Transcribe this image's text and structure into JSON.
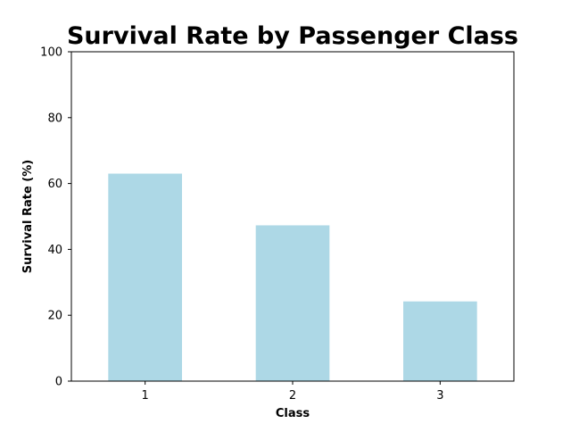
{
  "chart_data": {
    "type": "bar",
    "title": "Survival Rate by Passenger Class",
    "xlabel": "Class",
    "ylabel": "Survival Rate (%)",
    "categories": [
      "1",
      "2",
      "3"
    ],
    "values": [
      63.0,
      47.3,
      24.2
    ],
    "ylim": [
      0,
      100
    ],
    "yticks": [
      0,
      20,
      40,
      60,
      80,
      100
    ],
    "grid": false,
    "legend": "none",
    "bar_color": "#add8e6"
  }
}
